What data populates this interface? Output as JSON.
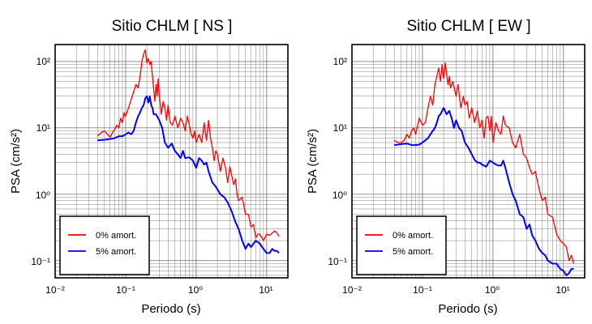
{
  "colors": {
    "undamped": "#ff0000",
    "damped": "#0000ff",
    "grid": "#808080",
    "frame": "#000000"
  },
  "chart_data": [
    {
      "type": "line",
      "title": "Sitio CHLM [ NS ]",
      "xlabel": "Periodo (s)",
      "ylabel": "PSA (cm/s²)",
      "xscale": "log",
      "yscale": "log",
      "xlim": [
        0.01,
        20
      ],
      "ylim": [
        0.055,
        180
      ],
      "grid": true,
      "legend_position": "bottom-left",
      "x_tick_labels": [
        "10⁻²",
        "10⁻¹",
        "10⁰",
        "10¹"
      ],
      "y_tick_labels": [
        "10⁻¹",
        "10⁰",
        "10¹",
        "10²"
      ],
      "series": [
        {
          "name": "0% amort.",
          "color": "#ff0000",
          "x": [
            0.04,
            0.045,
            0.05,
            0.055,
            0.06,
            0.065,
            0.07,
            0.075,
            0.08,
            0.085,
            0.09,
            0.095,
            0.1,
            0.11,
            0.12,
            0.13,
            0.14,
            0.15,
            0.16,
            0.17,
            0.18,
            0.19,
            0.2,
            0.21,
            0.22,
            0.23,
            0.24,
            0.25,
            0.26,
            0.27,
            0.28,
            0.29,
            0.3,
            0.32,
            0.34,
            0.36,
            0.38,
            0.4,
            0.43,
            0.46,
            0.5,
            0.55,
            0.6,
            0.65,
            0.7,
            0.75,
            0.8,
            0.85,
            0.9,
            0.95,
            1.0,
            1.1,
            1.2,
            1.3,
            1.4,
            1.5,
            1.6,
            1.7,
            1.8,
            1.9,
            2.0,
            2.2,
            2.4,
            2.6,
            2.8,
            3.0,
            3.2,
            3.4,
            3.6,
            3.8,
            4.0,
            4.5,
            5.0,
            5.5,
            6.0,
            6.5,
            7.0,
            7.5,
            8.0,
            9.0,
            10.0,
            11.0,
            12.0,
            13.0,
            14.0,
            15.0
          ],
          "y": [
            7.5,
            8.5,
            9,
            8,
            7.2,
            8.5,
            9.5,
            11,
            10,
            14,
            12,
            17,
            15,
            20,
            27,
            35,
            45,
            40,
            60,
            100,
            130,
            150,
            95,
            110,
            90,
            100,
            60,
            38,
            25,
            45,
            30,
            55,
            32,
            16,
            25,
            20,
            13,
            22,
            12,
            11,
            15,
            10,
            14,
            12,
            9,
            15,
            11,
            8,
            7,
            9,
            6,
            8,
            6,
            12,
            6.5,
            13,
            7,
            5,
            3.2,
            4.5,
            4,
            2.2,
            3.5,
            2.5,
            1.5,
            2.6,
            1.9,
            1.4,
            1.7,
            1.0,
            0.8,
            0.9,
            0.5,
            0.5,
            0.32,
            0.35,
            0.22,
            0.25,
            0.25,
            0.2,
            0.25,
            0.24,
            0.26,
            0.28,
            0.26,
            0.23
          ]
        },
        {
          "name": "5% amort.",
          "color": "#0000ff",
          "x": [
            0.04,
            0.05,
            0.06,
            0.07,
            0.08,
            0.09,
            0.1,
            0.11,
            0.12,
            0.13,
            0.14,
            0.15,
            0.16,
            0.17,
            0.18,
            0.19,
            0.2,
            0.21,
            0.22,
            0.23,
            0.24,
            0.25,
            0.27,
            0.3,
            0.33,
            0.36,
            0.4,
            0.45,
            0.5,
            0.55,
            0.6,
            0.65,
            0.7,
            0.8,
            0.9,
            1.0,
            1.1,
            1.2,
            1.3,
            1.4,
            1.5,
            1.7,
            1.9,
            2.2,
            2.5,
            2.8,
            3.2,
            3.6,
            4.0,
            4.5,
            5.0,
            5.5,
            6.0,
            7.0,
            8.0,
            9.0,
            10.0,
            11.0,
            12.0,
            13.0,
            14.0,
            15.0
          ],
          "y": [
            6.5,
            6.6,
            6.8,
            7,
            7.5,
            7.5,
            8,
            8.5,
            8,
            9,
            12,
            15,
            17,
            20,
            22,
            28,
            30,
            24,
            30,
            22,
            20,
            16,
            16,
            13,
            10,
            6,
            5,
            5.8,
            4.5,
            4,
            3.5,
            4.5,
            3.5,
            3.6,
            3.2,
            2.5,
            3.5,
            3.2,
            2.8,
            3,
            2.2,
            1.5,
            1.3,
            1.0,
            0.9,
            0.75,
            0.55,
            0.38,
            0.3,
            0.2,
            0.15,
            0.18,
            0.16,
            0.2,
            0.18,
            0.15,
            0.13,
            0.13,
            0.15,
            0.14,
            0.14,
            0.13
          ]
        }
      ]
    },
    {
      "type": "line",
      "title": "Sitio CHLM [ EW ]",
      "xlabel": "Periodo (s)",
      "ylabel": "PSA (cm/s²)",
      "xscale": "log",
      "yscale": "log",
      "xlim": [
        0.01,
        20
      ],
      "ylim": [
        0.055,
        180
      ],
      "grid": true,
      "legend_position": "bottom-left",
      "x_tick_labels": [
        "10⁻²",
        "10⁻¹",
        "10⁰",
        "10¹"
      ],
      "y_tick_labels": [
        "10⁻¹",
        "10⁰",
        "10¹",
        "10²"
      ],
      "series": [
        {
          "name": "0% amort.",
          "color": "#ff0000",
          "x": [
            0.04,
            0.045,
            0.05,
            0.055,
            0.06,
            0.065,
            0.07,
            0.075,
            0.08,
            0.09,
            0.1,
            0.11,
            0.12,
            0.13,
            0.14,
            0.15,
            0.16,
            0.17,
            0.18,
            0.19,
            0.2,
            0.21,
            0.22,
            0.23,
            0.24,
            0.25,
            0.27,
            0.3,
            0.32,
            0.35,
            0.38,
            0.4,
            0.43,
            0.46,
            0.5,
            0.55,
            0.6,
            0.65,
            0.7,
            0.75,
            0.8,
            0.85,
            0.9,
            0.95,
            1.0,
            1.1,
            1.2,
            1.3,
            1.4,
            1.5,
            1.7,
            1.9,
            2.1,
            2.4,
            2.7,
            3.0,
            3.3,
            3.6,
            4.0,
            4.5,
            5.0,
            5.5,
            6.0,
            7.0,
            8.0,
            9.0,
            10.0,
            11.0,
            12.0,
            13.0,
            14.0
          ],
          "y": [
            6.5,
            6,
            6,
            6.5,
            8,
            7,
            9,
            10,
            8,
            14,
            11,
            12,
            20,
            30,
            22,
            45,
            60,
            80,
            50,
            90,
            55,
            95,
            65,
            45,
            60,
            40,
            50,
            30,
            45,
            20,
            30,
            22,
            25,
            14,
            20,
            12,
            18,
            10,
            13,
            7,
            14,
            15,
            9,
            15,
            6,
            12,
            9,
            8,
            15,
            11,
            10,
            6,
            5,
            8,
            4,
            3.5,
            2.5,
            2,
            2.2,
            1.2,
            0.8,
            0.9,
            0.5,
            0.45,
            0.25,
            0.2,
            0.18,
            0.16,
            0.1,
            0.12,
            0.09
          ]
        },
        {
          "name": "5% amort.",
          "color": "#0000ff",
          "x": [
            0.04,
            0.05,
            0.06,
            0.07,
            0.08,
            0.09,
            0.1,
            0.11,
            0.12,
            0.13,
            0.14,
            0.15,
            0.16,
            0.17,
            0.18,
            0.2,
            0.22,
            0.24,
            0.26,
            0.28,
            0.3,
            0.33,
            0.36,
            0.4,
            0.45,
            0.5,
            0.55,
            0.6,
            0.65,
            0.7,
            0.8,
            0.9,
            1.0,
            1.1,
            1.2,
            1.3,
            1.4,
            1.5,
            1.7,
            1.9,
            2.1,
            2.4,
            2.7,
            3.0,
            3.3,
            3.6,
            4.0,
            4.5,
            5.0,
            5.5,
            6.0,
            7.0,
            8.0,
            9.0,
            10.0,
            11.0,
            12.0,
            13.0,
            14.0
          ],
          "y": [
            5.5,
            5.7,
            5.8,
            5.5,
            5.5,
            5.6,
            6,
            6.5,
            7,
            8,
            9,
            10,
            12,
            15,
            16,
            20,
            16,
            18,
            14,
            10,
            13,
            10,
            9,
            6,
            5,
            4,
            3.3,
            3,
            3,
            2.8,
            2.6,
            3.2,
            3.0,
            2.8,
            2.7,
            2.7,
            3.2,
            2.5,
            1.5,
            1.0,
            0.8,
            0.5,
            0.45,
            0.3,
            0.35,
            0.24,
            0.2,
            0.15,
            0.13,
            0.12,
            0.1,
            0.09,
            0.09,
            0.075,
            0.07,
            0.06,
            0.065,
            0.075,
            0.075
          ]
        }
      ]
    }
  ]
}
